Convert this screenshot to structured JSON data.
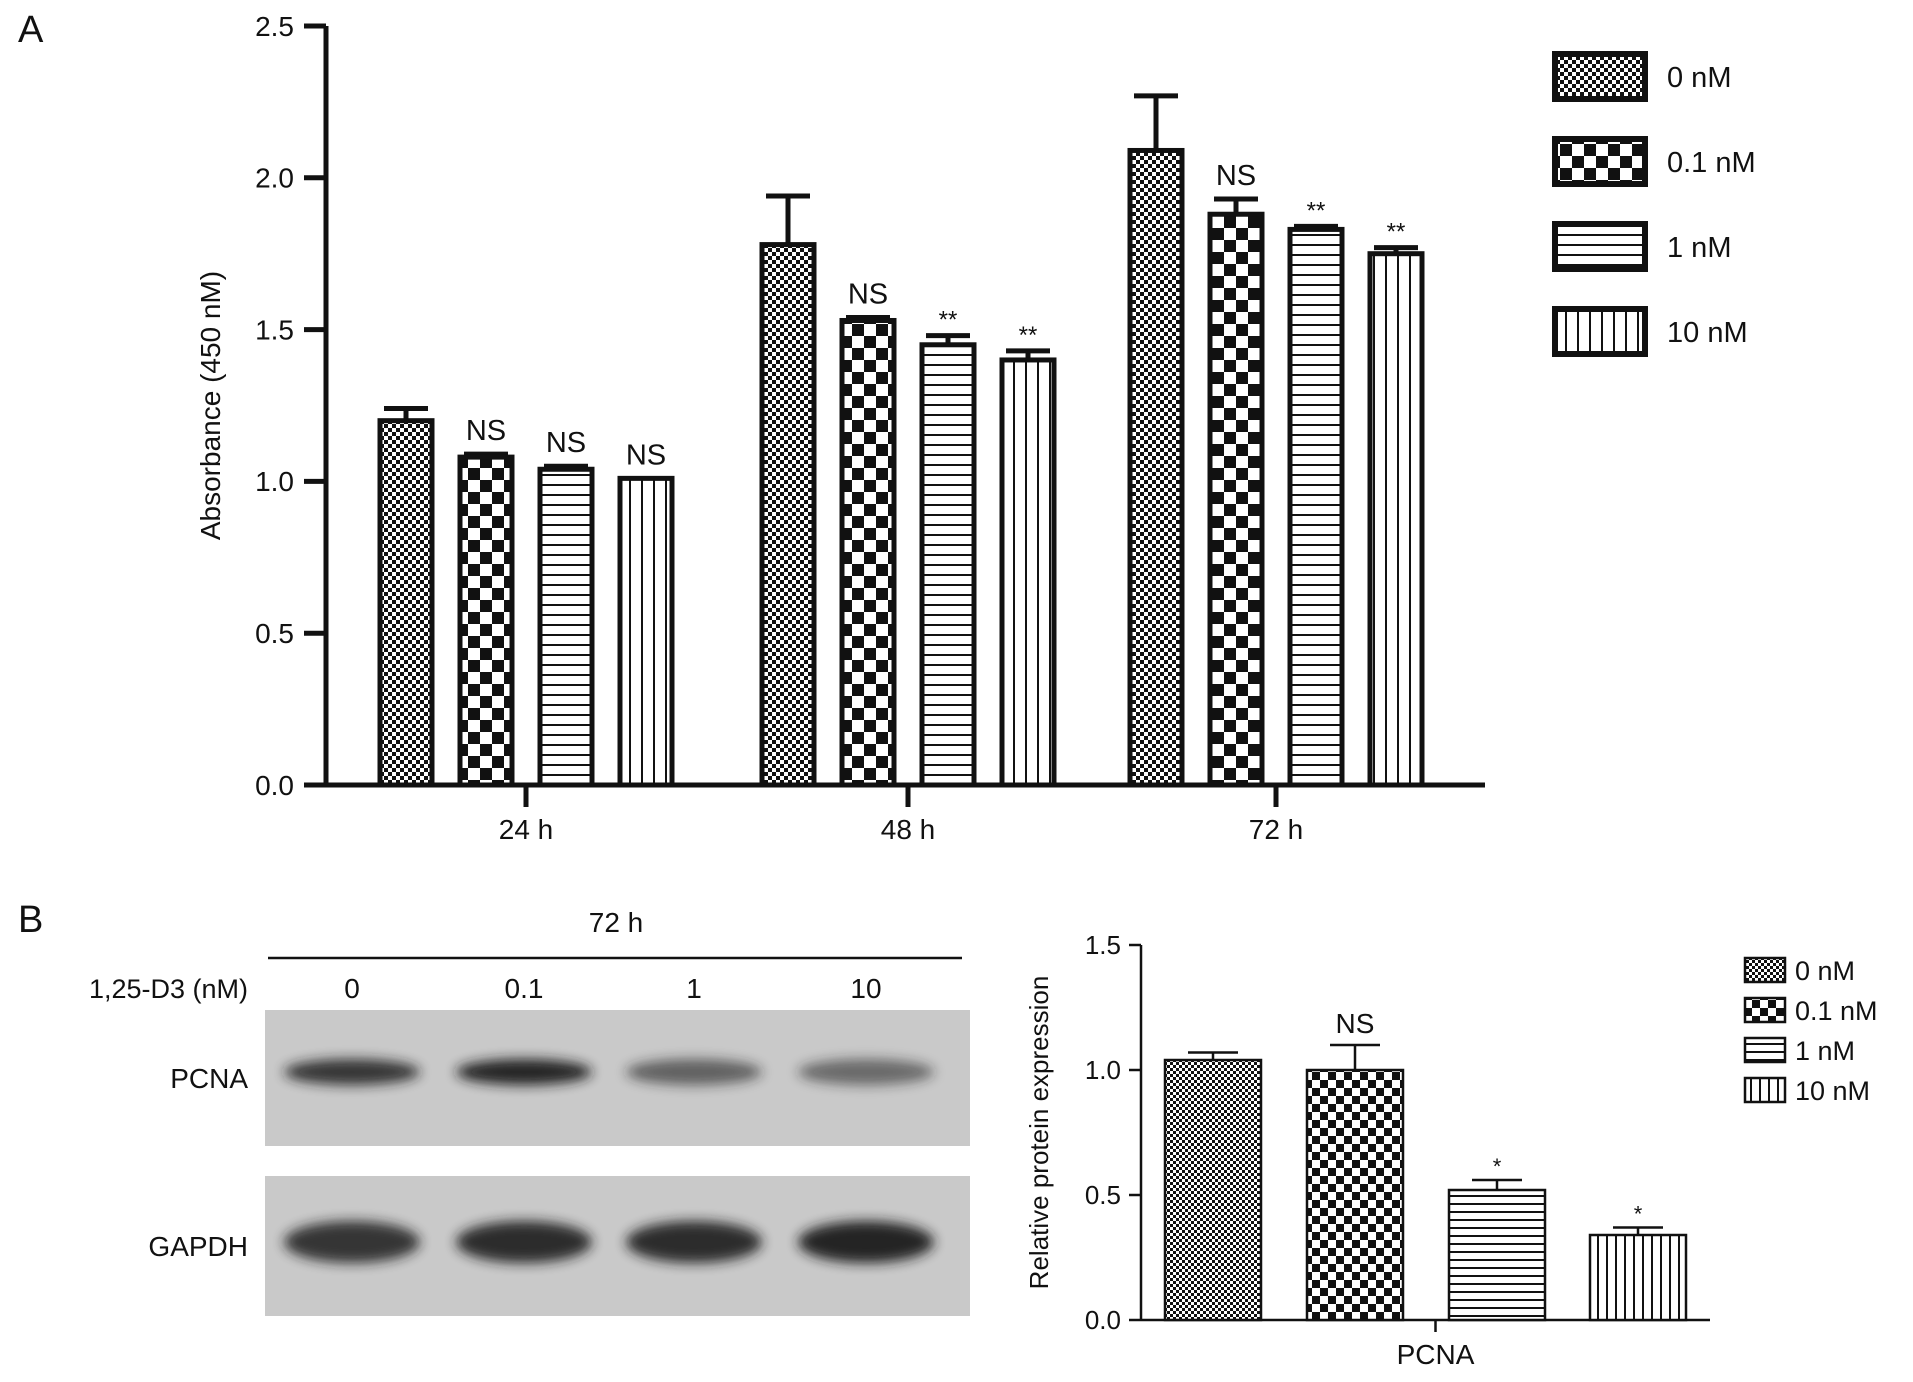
{
  "panels": {
    "a_label": "A",
    "b_label": "B"
  },
  "colors": {
    "ink": "#111111",
    "background": "#ffffff",
    "blot_background": "#c9c9c9",
    "band": "#1e1e1e"
  },
  "chart_data": [
    {
      "id": "chart-a",
      "type": "bar",
      "ylabel": "Absorbance (450 nM)",
      "ylim": [
        0,
        2.5
      ],
      "yticks": [
        "0.0",
        "0.5",
        "1.0",
        "1.5",
        "2.0",
        "2.5"
      ],
      "categories": [
        "24 h",
        "48 h",
        "72 h"
      ],
      "series": [
        {
          "name": "0 nM",
          "pattern": "fine-checker",
          "values": [
            1.2,
            1.78,
            2.09
          ],
          "errors": [
            0.04,
            0.16,
            0.18
          ],
          "annotations": [
            "",
            "",
            ""
          ]
        },
        {
          "name": "0.1 nM",
          "pattern": "coarse-checker",
          "values": [
            1.08,
            1.53,
            1.88
          ],
          "errors": [
            0.01,
            0.01,
            0.05
          ],
          "annotations": [
            "NS",
            "NS",
            "NS"
          ]
        },
        {
          "name": "1 nM",
          "pattern": "horizontal-lines",
          "values": [
            1.04,
            1.45,
            1.83
          ],
          "errors": [
            0.01,
            0.03,
            0.01
          ],
          "annotations": [
            "NS",
            "**",
            "**"
          ]
        },
        {
          "name": "10 nM",
          "pattern": "vertical-lines",
          "values": [
            1.01,
            1.4,
            1.75
          ],
          "errors": [
            0.0,
            0.03,
            0.02
          ],
          "annotations": [
            "NS",
            "**",
            "**"
          ]
        }
      ],
      "legend_position": "top-right",
      "grid": false
    },
    {
      "id": "chart-b",
      "type": "bar",
      "ylabel": "Relative protein expression",
      "ylim": [
        0,
        1.5
      ],
      "yticks": [
        "0.0",
        "0.5",
        "1.0",
        "1.5"
      ],
      "categories": [
        "PCNA"
      ],
      "series": [
        {
          "name": "0 nM",
          "pattern": "fine-checker",
          "values": [
            1.04
          ],
          "errors": [
            0.03
          ],
          "annotations": [
            ""
          ]
        },
        {
          "name": "0.1 nM",
          "pattern": "coarse-checker",
          "values": [
            1.0
          ],
          "errors": [
            0.1
          ],
          "annotations": [
            "NS"
          ]
        },
        {
          "name": "1 nM",
          "pattern": "horizontal-lines",
          "values": [
            0.52
          ],
          "errors": [
            0.04
          ],
          "annotations": [
            "*"
          ]
        },
        {
          "name": "10 nM",
          "pattern": "vertical-lines",
          "values": [
            0.34
          ],
          "errors": [
            0.03
          ],
          "annotations": [
            "*"
          ]
        }
      ],
      "legend_position": "top-right",
      "grid": false
    }
  ],
  "blot": {
    "time_label": "72 h",
    "treatment_label": "1,25-D3 (nM)",
    "lanes": [
      "0",
      "0.1",
      "1",
      "10"
    ],
    "rows": [
      {
        "name": "PCNA",
        "intensities": [
          0.85,
          0.95,
          0.6,
          0.55
        ]
      },
      {
        "name": "GAPDH",
        "intensities": [
          0.85,
          0.9,
          0.9,
          0.95
        ]
      }
    ]
  }
}
